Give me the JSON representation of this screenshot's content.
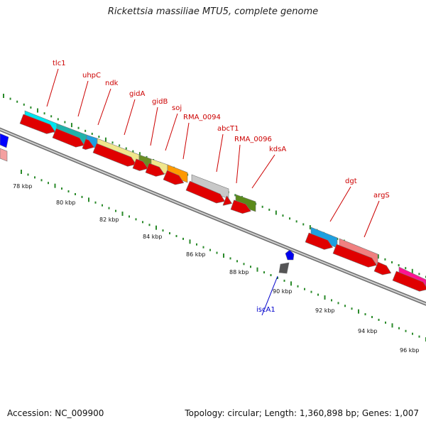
{
  "title": "Rickettsia massiliae MTU5, complete genome",
  "footer": {
    "accession": "Accession: NC_009900",
    "summary": "Topology: circular; Length: 1,360,898 bp; Genes: 1,007"
  },
  "colors": {
    "backbone": "#8c8c8c",
    "tick": "#2a8a2a",
    "label": "#cc0000",
    "label_blue": "#0000cc",
    "cds": "#e00000"
  },
  "scale_labels": [
    "78 kbp",
    "80 kbp",
    "82 kbp",
    "84 kbp",
    "86 kbp",
    "88 kbp",
    "90 kbp",
    "92 kbp",
    "94 kbp",
    "96 kbp"
  ],
  "gene_labels": [
    {
      "text": "tlc1",
      "color": "red"
    },
    {
      "text": "uhpC",
      "color": "red"
    },
    {
      "text": "ndk",
      "color": "red"
    },
    {
      "text": "gidA",
      "color": "red"
    },
    {
      "text": "gidB",
      "color": "red"
    },
    {
      "text": "soj",
      "color": "red"
    },
    {
      "text": "RMA_0094",
      "color": "red"
    },
    {
      "text": "abcT1",
      "color": "red"
    },
    {
      "text": "RMA_0096",
      "color": "red"
    },
    {
      "text": "kdsA",
      "color": "red"
    },
    {
      "text": "dgt",
      "color": "red"
    },
    {
      "text": "argS",
      "color": "red"
    },
    {
      "text": "iscA1",
      "color": "blue"
    }
  ],
  "feature_colors": [
    "#00e5ee",
    "#20b2aa",
    "#1ea0e0",
    "#f0e68c",
    "#6b8e23",
    "#ff9900",
    "#c8c8c8",
    "#5a8a1a",
    "#f08080",
    "#ff1493",
    "#0000ff",
    "#f4a0a0"
  ]
}
